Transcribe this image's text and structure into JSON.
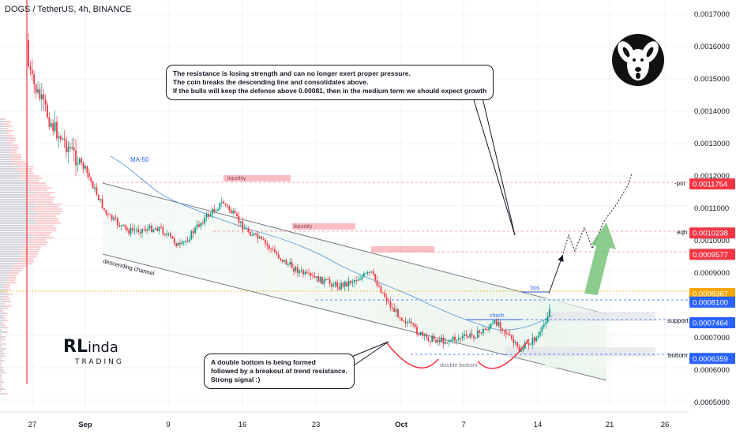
{
  "header": {
    "title": "DOGS / TetherUS, 4h, BINANCE"
  },
  "callouts": {
    "top": [
      "The resistance is losing strength and can no longer exert proper pressure.",
      "The coin breaks the descending line and consolidates above.",
      "If the bulls will keep the defense above 0.00081, then in the medium term we should expect growth"
    ],
    "bottom": [
      "A double bottom is being formed",
      "followed by a breakout of trend resistance.",
      "Strong signal :)"
    ]
  },
  "brand": {
    "first": "RL",
    "second": "inda",
    "sub": "TRADING"
  },
  "colors": {
    "up": "#089981",
    "down": "#f23645",
    "channel": "#787b86",
    "level_blue": "#2962ff",
    "level_red": "#f23645",
    "last_price": "#f7a600",
    "ma": "#5b9bd5",
    "arrow_green": "#4caf50"
  },
  "annotations": {
    "ma_label": "MA-50",
    "descending_channel": "descending channel",
    "double_bottom": "double bottom",
    "liquidity": "liquidity",
    "choch": "choch",
    "bos": "bos",
    "poi": "-poi",
    "eqh": "eqh",
    "support": "support",
    "bottom": "bottom"
  },
  "chart_data": {
    "type": "candlestick",
    "title": "DOGS / TetherUS, 4h, BINANCE",
    "y_ticks": [
      "0.0017000",
      "0.0016000",
      "0.0015000",
      "0.0014000",
      "0.0013000",
      "0.0012000",
      "0.0011000",
      "0.0010000",
      "0.0009000",
      "0.0007000",
      "0.0006000",
      "0.0005000"
    ],
    "x_ticks": [
      "27",
      "Sep",
      "9",
      "16",
      "23",
      "Oct",
      "7",
      "14",
      "21",
      "26"
    ],
    "price_labels": [
      {
        "value": "0.0011754",
        "color": "red",
        "level": "-poi"
      },
      {
        "value": "0.0010238",
        "color": "red",
        "level": "eqh"
      },
      {
        "value": "0.0009577",
        "color": "red",
        "level": ""
      },
      {
        "value": "0.0008367",
        "color": "orange",
        "level": "last"
      },
      {
        "value": "0.0008100",
        "color": "blue",
        "level": ""
      },
      {
        "value": "0.0007464",
        "color": "blue",
        "level": "support"
      },
      {
        "value": "0.0006359",
        "color": "blue",
        "level": "bottom"
      }
    ],
    "price_path": [
      [
        "Aug 26",
        0.00162
      ],
      [
        "Aug 27",
        0.00149
      ],
      [
        "Aug 29",
        0.00135
      ],
      [
        "Sep 1",
        0.00122
      ],
      [
        "Sep 3",
        0.00108
      ],
      [
        "Sep 5",
        0.00103
      ],
      [
        "Sep 8",
        0.00104
      ],
      [
        "Sep 10",
        0.00098
      ],
      [
        "Sep 12",
        0.00106
      ],
      [
        "Sep 14",
        0.00112
      ],
      [
        "Sep 16",
        0.00104
      ],
      [
        "Sep 18",
        0.00099
      ],
      [
        "Sep 20",
        0.00093
      ],
      [
        "Sep 22",
        0.00089
      ],
      [
        "Sep 25",
        0.00086
      ],
      [
        "Sep 28",
        0.0009
      ],
      [
        "Sep 30",
        0.00079
      ],
      [
        "Oct 2",
        0.0007
      ],
      [
        "Oct 4",
        0.00069
      ],
      [
        "Oct 7",
        0.00071
      ],
      [
        "Oct 9",
        0.00075
      ],
      [
        "Oct 11",
        0.00066
      ],
      [
        "Oct 13",
        0.00071
      ],
      [
        "Oct 14",
        0.0008
      ],
      [
        "Oct 15",
        0.00084
      ]
    ]
  }
}
